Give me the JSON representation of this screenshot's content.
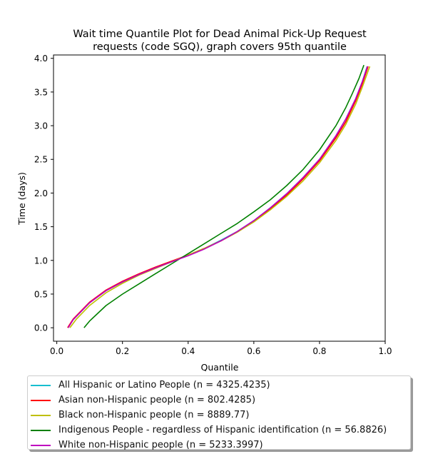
{
  "chart_data": {
    "type": "line",
    "title_line1": "Wait time Quantile Plot for Dead Animal Pick-Up Request",
    "title_line2": "requests (code SGQ), graph covers 95th quantile",
    "xlabel": "Quantile",
    "ylabel": "Time (days)",
    "xlim": [
      -0.01,
      1.0
    ],
    "ylim": [
      -0.2,
      4.05
    ],
    "xticks": [
      "0.0",
      "0.2",
      "0.4",
      "0.6",
      "0.8",
      "1.0"
    ],
    "yticks": [
      "0.0",
      "0.5",
      "1.0",
      "1.5",
      "2.0",
      "2.5",
      "3.0",
      "3.5",
      "4.0"
    ],
    "grid": false,
    "legend_placement": "below plot",
    "series": [
      {
        "name": "All Hispanic or Latino People (n = 4325.4235)",
        "color": "#17becf",
        "x": [
          0.034,
          0.05,
          0.1,
          0.15,
          0.2,
          0.25,
          0.3,
          0.35,
          0.4,
          0.45,
          0.5,
          0.55,
          0.6,
          0.65,
          0.7,
          0.75,
          0.8,
          0.85,
          0.88,
          0.91,
          0.93,
          0.945
        ],
        "y": [
          0.0,
          0.12,
          0.37,
          0.55,
          0.68,
          0.79,
          0.89,
          0.98,
          1.08,
          1.18,
          1.3,
          1.43,
          1.59,
          1.78,
          1.99,
          2.23,
          2.5,
          2.85,
          3.1,
          3.4,
          3.65,
          3.88
        ]
      },
      {
        "name": "Asian non-Hispanic people (n = 802.4285)",
        "color": "#ff0000",
        "x": [
          0.033,
          0.05,
          0.1,
          0.15,
          0.2,
          0.25,
          0.3,
          0.35,
          0.4,
          0.45,
          0.5,
          0.55,
          0.6,
          0.65,
          0.7,
          0.75,
          0.8,
          0.85,
          0.88,
          0.91,
          0.93,
          0.948
        ],
        "y": [
          0.0,
          0.13,
          0.38,
          0.56,
          0.69,
          0.8,
          0.9,
          0.99,
          1.08,
          1.18,
          1.29,
          1.42,
          1.58,
          1.76,
          1.97,
          2.21,
          2.48,
          2.82,
          3.06,
          3.37,
          3.62,
          3.88
        ]
      },
      {
        "name": "Black non-Hispanic people (n = 8889.77)",
        "color": "#bfbf00",
        "x": [
          0.04,
          0.06,
          0.1,
          0.15,
          0.2,
          0.25,
          0.3,
          0.35,
          0.4,
          0.45,
          0.5,
          0.55,
          0.6,
          0.65,
          0.7,
          0.75,
          0.8,
          0.85,
          0.88,
          0.91,
          0.93,
          0.953
        ],
        "y": [
          0.0,
          0.13,
          0.33,
          0.52,
          0.66,
          0.78,
          0.88,
          0.98,
          1.08,
          1.18,
          1.29,
          1.42,
          1.57,
          1.75,
          1.95,
          2.18,
          2.45,
          2.78,
          3.02,
          3.32,
          3.57,
          3.88
        ]
      },
      {
        "name": "Indigenous People - regardless of Hispanic identification (n = 56.8826)",
        "color": "#008000",
        "x": [
          0.083,
          0.1,
          0.15,
          0.2,
          0.25,
          0.3,
          0.35,
          0.4,
          0.45,
          0.5,
          0.55,
          0.6,
          0.65,
          0.7,
          0.75,
          0.8,
          0.85,
          0.88,
          0.9,
          0.92,
          0.935
        ],
        "y": [
          0.0,
          0.1,
          0.33,
          0.5,
          0.65,
          0.8,
          0.95,
          1.1,
          1.25,
          1.4,
          1.55,
          1.72,
          1.9,
          2.11,
          2.35,
          2.64,
          3.0,
          3.27,
          3.48,
          3.7,
          3.9
        ]
      },
      {
        "name": "White non-Hispanic people (n = 5233.3997)",
        "color": "#bf00bf",
        "x": [
          0.035,
          0.05,
          0.1,
          0.15,
          0.2,
          0.25,
          0.3,
          0.35,
          0.4,
          0.45,
          0.5,
          0.55,
          0.6,
          0.65,
          0.7,
          0.75,
          0.8,
          0.85,
          0.88,
          0.91,
          0.93,
          0.946
        ],
        "y": [
          0.0,
          0.12,
          0.37,
          0.55,
          0.68,
          0.79,
          0.89,
          0.98,
          1.07,
          1.17,
          1.29,
          1.43,
          1.59,
          1.78,
          1.99,
          2.23,
          2.5,
          2.85,
          3.1,
          3.4,
          3.65,
          3.88
        ]
      }
    ]
  }
}
